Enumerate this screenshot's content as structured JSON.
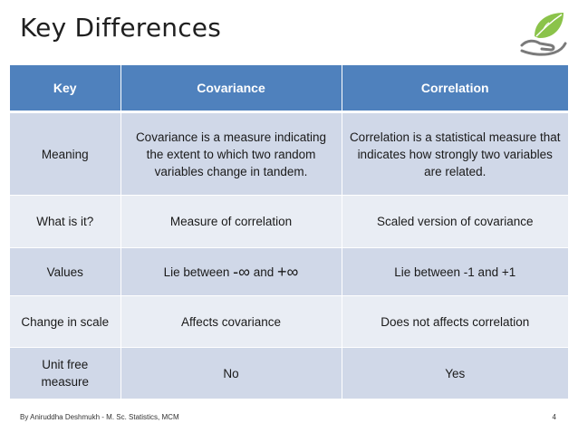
{
  "slide": {
    "title": "Key Differences",
    "footer": "By Aniruddha Deshmukh - M. Sc. Statistics, MCM",
    "page_number": "4",
    "logo_icon": "leaf-hand-logo-icon"
  },
  "table": {
    "headers": [
      "Key",
      "Covariance",
      "Correlation"
    ],
    "rows": [
      {
        "key": "Meaning",
        "covariance": "Covariance is a measure indicating the extent to which two random variables change in tandem.",
        "correlation": "Correlation is a statistical measure that indicates how strongly two variables are related."
      },
      {
        "key": "What is it?",
        "covariance": "Measure of correlation",
        "correlation": "Scaled version of covariance"
      },
      {
        "key": "Values",
        "covariance_prefix": "Lie between ",
        "covariance_neg_inf": "-∞",
        "covariance_and": " and ",
        "covariance_pos_inf": "+∞",
        "correlation": "Lie between -1 and +1"
      },
      {
        "key": "Change in scale",
        "covariance": "Affects covariance",
        "correlation": "Does not affects correlation"
      },
      {
        "key": "Unit free measure",
        "covariance": "No",
        "correlation": "Yes"
      }
    ]
  },
  "colors": {
    "header_bg": "#4f81bd",
    "row_odd_bg": "#d0d8e8",
    "row_even_bg": "#e9edf4",
    "logo_green": "#8bc34a",
    "logo_gray": "#7a7a7a"
  }
}
